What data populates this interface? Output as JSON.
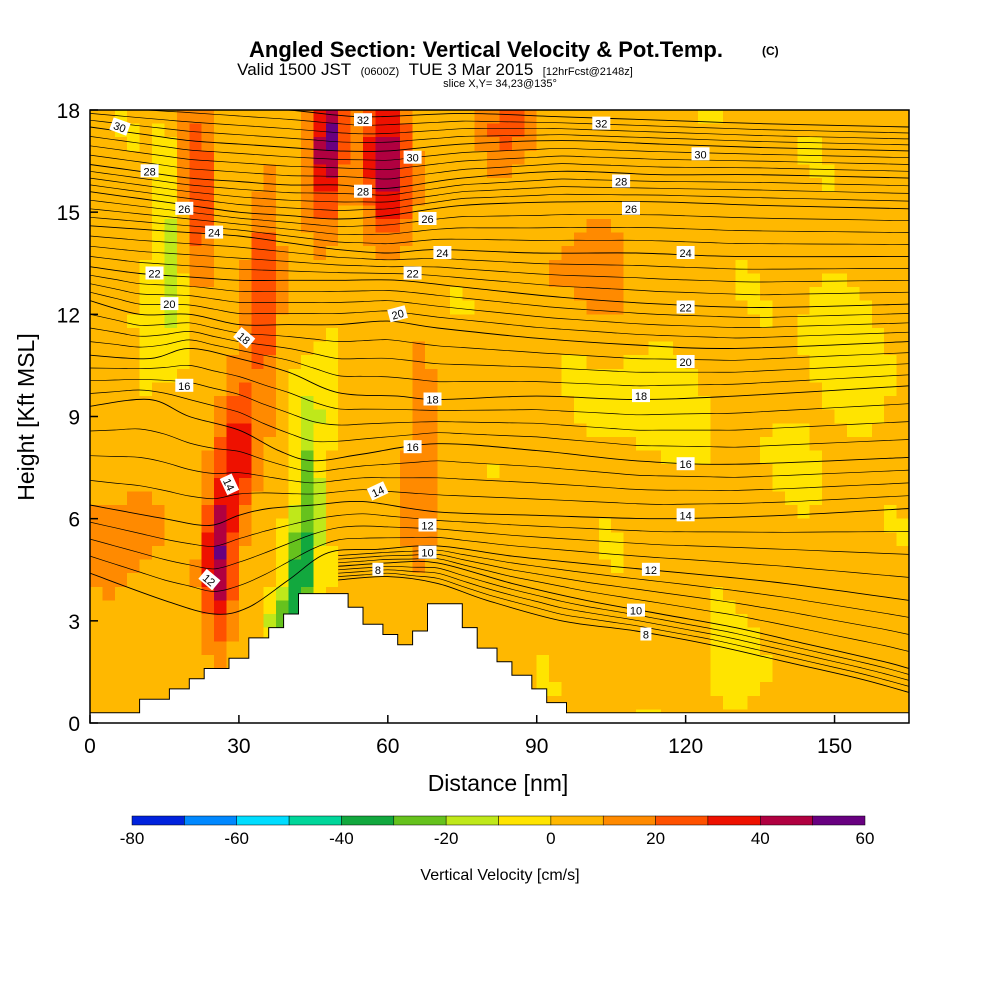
{
  "chart_data": {
    "type": "heatmap",
    "title": "Angled Section: Vertical Velocity & Pot.Temp.",
    "title_mark": "(C)",
    "subtitle_main": "Valid 1500 JST",
    "subtitle_z": "(0600Z)",
    "subtitle_date": "TUE 3 Mar 2015",
    "subtitle_fcst": "[12hrFcst@2148z]",
    "slice": "slice X,Y= 34,23@135°",
    "xlabel": "Distance [nm]",
    "ylabel": "Height [Kft MSL]",
    "xlim": [
      0,
      165
    ],
    "ylim": [
      0,
      18
    ],
    "x_ticks": [
      0,
      30,
      60,
      90,
      120,
      150
    ],
    "y_ticks": [
      0,
      3,
      6,
      9,
      12,
      15,
      18
    ],
    "colorbar": {
      "label": "Vertical Velocity [cm/s]",
      "ticks": [
        -80,
        -60,
        -40,
        -20,
        0,
        20,
        40,
        60
      ],
      "bounds": [
        -80,
        -70,
        -60,
        -50,
        -40,
        -30,
        -20,
        -10,
        0,
        10,
        20,
        30,
        40,
        50,
        60
      ],
      "colors": [
        "#0022dd",
        "#0088ff",
        "#00ddff",
        "#00d69a",
        "#12a83e",
        "#66c21d",
        "#bfe81a",
        "#ffe400",
        "#ffb800",
        "#ff8a00",
        "#ff5100",
        "#ee1100",
        "#b00040",
        "#680080"
      ]
    },
    "terrain": [
      [
        0,
        0.3
      ],
      [
        10,
        0.3
      ],
      [
        10,
        0.7
      ],
      [
        16,
        0.7
      ],
      [
        16,
        1.0
      ],
      [
        20,
        1.0
      ],
      [
        20,
        1.3
      ],
      [
        23,
        1.3
      ],
      [
        23,
        1.6
      ],
      [
        28,
        1.6
      ],
      [
        28,
        1.9
      ],
      [
        32,
        1.9
      ],
      [
        32,
        2.5
      ],
      [
        36,
        2.5
      ],
      [
        36,
        2.8
      ],
      [
        39,
        2.8
      ],
      [
        39,
        3.2
      ],
      [
        42,
        3.2
      ],
      [
        42,
        3.8
      ],
      [
        52,
        3.8
      ],
      [
        52,
        3.4
      ],
      [
        55,
        3.4
      ],
      [
        55,
        2.9
      ],
      [
        59,
        2.9
      ],
      [
        59,
        2.6
      ],
      [
        62,
        2.6
      ],
      [
        62,
        2.3
      ],
      [
        65,
        2.3
      ],
      [
        65,
        2.7
      ],
      [
        68,
        2.7
      ],
      [
        68,
        3.5
      ],
      [
        75,
        3.5
      ],
      [
        75,
        2.8
      ],
      [
        78,
        2.8
      ],
      [
        78,
        2.2
      ],
      [
        82,
        2.2
      ],
      [
        82,
        1.8
      ],
      [
        85,
        1.8
      ],
      [
        85,
        1.4
      ],
      [
        89,
        1.4
      ],
      [
        89,
        1.0
      ],
      [
        92,
        1.0
      ],
      [
        92,
        0.6
      ],
      [
        96,
        0.6
      ],
      [
        96,
        0.3
      ],
      [
        165,
        0.3
      ]
    ],
    "velocity_field": [
      {
        "x": 22,
        "y": 16,
        "sx": 4,
        "sy": 2.6,
        "amp": 25
      },
      {
        "x": 16,
        "y": 14,
        "sx": 3,
        "sy": 3.0,
        "amp": -18
      },
      {
        "x": 11,
        "y": 10.5,
        "sx": 3,
        "sy": 1.8,
        "amp": -10
      },
      {
        "x": 26,
        "y": 5,
        "sx": 3.2,
        "sy": 2.6,
        "amp": 48
      },
      {
        "x": 30,
        "y": 8,
        "sx": 3,
        "sy": 2.2,
        "amp": 30
      },
      {
        "x": 35,
        "y": 12.5,
        "sx": 3.2,
        "sy": 3.2,
        "amp": 30
      },
      {
        "x": 47,
        "y": 16.5,
        "sx": 3.6,
        "sy": 2.4,
        "amp": 35
      },
      {
        "x": 49,
        "y": 17.5,
        "sx": 2.5,
        "sy": 1.5,
        "amp": 25
      },
      {
        "x": 60,
        "y": 16.5,
        "sx": 5,
        "sy": 2.2,
        "amp": 45
      },
      {
        "x": 84,
        "y": 17.5,
        "sx": 5,
        "sy": 1.5,
        "amp": 25
      },
      {
        "x": 44,
        "y": 7,
        "sx": 2.6,
        "sy": 2.6,
        "amp": -28
      },
      {
        "x": 42,
        "y": 4,
        "sx": 2.6,
        "sy": 1.6,
        "amp": -40
      },
      {
        "x": 38,
        "y": 3,
        "sx": 2.4,
        "sy": 1.0,
        "amp": -28
      },
      {
        "x": 48,
        "y": 10,
        "sx": 2.2,
        "sy": 1.8,
        "amp": -14
      },
      {
        "x": 66,
        "y": 7,
        "sx": 4,
        "sy": 3.5,
        "amp": 14
      },
      {
        "x": 4,
        "y": 5,
        "sx": 6,
        "sy": 2.2,
        "amp": 12
      },
      {
        "x": 12,
        "y": 7,
        "sx": 5,
        "sy": 2.5,
        "amp": 6
      },
      {
        "x": 106,
        "y": 14.5,
        "sx": 10,
        "sy": 3,
        "amp": 9
      },
      {
        "x": 92,
        "y": 13,
        "sx": 8,
        "sy": 1.5,
        "amp": 6
      },
      {
        "x": 112,
        "y": 9.5,
        "sx": 12,
        "sy": 2,
        "amp": -8
      },
      {
        "x": 150,
        "y": 10,
        "sx": 10,
        "sy": 3,
        "amp": -7
      },
      {
        "x": 130,
        "y": 1.5,
        "sx": 8,
        "sy": 1,
        "amp": -9
      },
      {
        "x": 150,
        "y": 1.5,
        "sx": 8,
        "sy": 1.2,
        "amp": 6
      },
      {
        "x": 88,
        "y": 5,
        "sx": 6,
        "sy": 2,
        "amp": 4
      },
      {
        "x": 152,
        "y": 4,
        "sx": 8,
        "sy": 2,
        "amp": 3
      }
    ],
    "isentropes": [
      {
        "level": 8,
        "points": [
          [
            50,
            4.2
          ],
          [
            60,
            4.3
          ],
          [
            70,
            4.1
          ],
          [
            80,
            3.6
          ],
          [
            95,
            3.0
          ],
          [
            110,
            2.7
          ],
          [
            125,
            2.3
          ],
          [
            140,
            1.8
          ],
          [
            155,
            1.3
          ],
          [
            165,
            0.9
          ]
        ]
      },
      {
        "level": 10,
        "points": [
          [
            50,
            4.6
          ],
          [
            60,
            4.7
          ],
          [
            70,
            4.7
          ],
          [
            85,
            4.1
          ],
          [
            100,
            3.6
          ],
          [
            115,
            3.2
          ],
          [
            130,
            2.8
          ],
          [
            145,
            2.3
          ],
          [
            160,
            1.8
          ],
          [
            165,
            1.6
          ]
        ]
      },
      {
        "level": 12,
        "points": [
          [
            0,
            4.4
          ],
          [
            15,
            3.6
          ],
          [
            25,
            3.2
          ],
          [
            32,
            3.4
          ],
          [
            40,
            4.2
          ],
          [
            48,
            5.0
          ],
          [
            58,
            5.1
          ],
          [
            70,
            5.2
          ],
          [
            85,
            4.9
          ],
          [
            105,
            4.6
          ],
          [
            120,
            4.4
          ],
          [
            140,
            4.1
          ],
          [
            165,
            3.6
          ]
        ]
      },
      {
        "level": 14,
        "points": [
          [
            0,
            6.4
          ],
          [
            15,
            6.0
          ],
          [
            24,
            5.8
          ],
          [
            30,
            6.1
          ],
          [
            36,
            6.3
          ],
          [
            45,
            6.4
          ],
          [
            55,
            6.5
          ],
          [
            70,
            6.2
          ],
          [
            90,
            6.1
          ],
          [
            115,
            6.0
          ],
          [
            140,
            6.1
          ],
          [
            165,
            6.3
          ]
        ]
      },
      {
        "level": 16,
        "points": [
          [
            0,
            9.3
          ],
          [
            12,
            9.5
          ],
          [
            20,
            9.0
          ],
          [
            30,
            8.6
          ],
          [
            38,
            8.0
          ],
          [
            45,
            7.7
          ],
          [
            55,
            7.9
          ],
          [
            70,
            8.2
          ],
          [
            90,
            8.0
          ],
          [
            110,
            7.7
          ],
          [
            130,
            7.6
          ],
          [
            165,
            7.8
          ]
        ]
      },
      {
        "level": 18,
        "points": [
          [
            0,
            10.8
          ],
          [
            12,
            10.7
          ],
          [
            20,
            11.0
          ],
          [
            30,
            10.7
          ],
          [
            40,
            10.3
          ],
          [
            50,
            9.7
          ],
          [
            62,
            9.6
          ],
          [
            70,
            9.5
          ],
          [
            90,
            9.6
          ],
          [
            110,
            9.5
          ],
          [
            130,
            9.6
          ],
          [
            165,
            9.9
          ]
        ]
      },
      {
        "level": 20,
        "points": [
          [
            0,
            12.4
          ],
          [
            10,
            12.0
          ],
          [
            20,
            12.0
          ],
          [
            30,
            11.7
          ],
          [
            40,
            11.7
          ],
          [
            50,
            11.7
          ],
          [
            60,
            11.8
          ],
          [
            70,
            11.6
          ],
          [
            90,
            11.3
          ],
          [
            110,
            11.1
          ],
          [
            130,
            11.0
          ],
          [
            165,
            11.2
          ]
        ]
      },
      {
        "level": 22,
        "points": [
          [
            0,
            13.4
          ],
          [
            10,
            13.2
          ],
          [
            20,
            13.1
          ],
          [
            30,
            13.0
          ],
          [
            40,
            13.0
          ],
          [
            50,
            13.0
          ],
          [
            62,
            13.0
          ],
          [
            75,
            12.8
          ],
          [
            95,
            12.5
          ],
          [
            115,
            12.3
          ],
          [
            135,
            12.2
          ],
          [
            165,
            12.3
          ]
        ]
      },
      {
        "level": 24,
        "points": [
          [
            0,
            14.6
          ],
          [
            10,
            14.5
          ],
          [
            20,
            14.4
          ],
          [
            30,
            14.3
          ],
          [
            40,
            14.1
          ],
          [
            50,
            13.9
          ],
          [
            60,
            13.8
          ],
          [
            70,
            13.9
          ],
          [
            90,
            13.8
          ],
          [
            110,
            13.8
          ],
          [
            130,
            13.7
          ],
          [
            165,
            13.7
          ]
        ]
      },
      {
        "level": 26,
        "points": [
          [
            0,
            15.6
          ],
          [
            10,
            15.4
          ],
          [
            20,
            15.2
          ],
          [
            30,
            15.0
          ],
          [
            40,
            14.9
          ],
          [
            50,
            14.8
          ],
          [
            60,
            14.9
          ],
          [
            75,
            15.2
          ],
          [
            95,
            15.3
          ],
          [
            115,
            15.3
          ],
          [
            135,
            15.2
          ],
          [
            165,
            15.1
          ]
        ]
      },
      {
        "level": 28,
        "points": [
          [
            0,
            16.4
          ],
          [
            10,
            16.2
          ],
          [
            20,
            16.0
          ],
          [
            30,
            15.9
          ],
          [
            40,
            15.8
          ],
          [
            50,
            15.8
          ],
          [
            60,
            15.7
          ],
          [
            75,
            16.0
          ],
          [
            95,
            16.2
          ],
          [
            115,
            16.1
          ],
          [
            135,
            16.1
          ],
          [
            165,
            16.0
          ]
        ]
      },
      {
        "level": 30,
        "points": [
          [
            0,
            17.5
          ],
          [
            10,
            17.3
          ],
          [
            20,
            17.1
          ],
          [
            30,
            17.0
          ],
          [
            40,
            16.9
          ],
          [
            50,
            16.8
          ],
          [
            60,
            16.8
          ],
          [
            75,
            17.0
          ],
          [
            95,
            17.1
          ],
          [
            115,
            17.0
          ],
          [
            135,
            16.9
          ],
          [
            165,
            16.8
          ]
        ]
      },
      {
        "level": 32,
        "points": [
          [
            0,
            18.3
          ],
          [
            20,
            18.2
          ],
          [
            40,
            18.0
          ],
          [
            55,
            17.8
          ],
          [
            75,
            17.9
          ],
          [
            95,
            17.8
          ],
          [
            115,
            17.7
          ],
          [
            135,
            17.6
          ],
          [
            165,
            17.5
          ]
        ]
      }
    ],
    "contour_labels": [
      {
        "x": 6,
        "y": 17.5,
        "text": "30",
        "rot": 20
      },
      {
        "x": 12,
        "y": 16.2,
        "text": "28",
        "rot": 0
      },
      {
        "x": 19,
        "y": 15.1,
        "text": "26",
        "rot": 0
      },
      {
        "x": 25,
        "y": 14.4,
        "text": "24",
        "rot": 0
      },
      {
        "x": 13,
        "y": 13.2,
        "text": "22",
        "rot": 0
      },
      {
        "x": 16,
        "y": 12.3,
        "text": "20",
        "rot": 0
      },
      {
        "x": 31,
        "y": 11.3,
        "text": "18",
        "rot": 40
      },
      {
        "x": 19,
        "y": 9.9,
        "text": "16",
        "rot": 0
      },
      {
        "x": 28,
        "y": 7.0,
        "text": "14",
        "rot": 65
      },
      {
        "x": 24,
        "y": 4.2,
        "text": "12",
        "rot": 40
      },
      {
        "x": 55,
        "y": 17.7,
        "text": "32",
        "rot": 0
      },
      {
        "x": 65,
        "y": 16.6,
        "text": "30",
        "rot": 0
      },
      {
        "x": 55,
        "y": 15.6,
        "text": "28",
        "rot": 0
      },
      {
        "x": 68,
        "y": 14.8,
        "text": "26",
        "rot": 0
      },
      {
        "x": 71,
        "y": 13.8,
        "text": "24",
        "rot": 0
      },
      {
        "x": 65,
        "y": 13.2,
        "text": "22",
        "rot": 0
      },
      {
        "x": 62,
        "y": 12.0,
        "text": "20",
        "rot": -15
      },
      {
        "x": 69,
        "y": 9.5,
        "text": "18",
        "rot": 0
      },
      {
        "x": 65,
        "y": 8.1,
        "text": "16",
        "rot": 0
      },
      {
        "x": 58,
        "y": 6.8,
        "text": "14",
        "rot": -25
      },
      {
        "x": 68,
        "y": 5.8,
        "text": "12",
        "rot": 0
      },
      {
        "x": 68,
        "y": 5.0,
        "text": "10",
        "rot": 0
      },
      {
        "x": 58,
        "y": 4.5,
        "text": "8",
        "rot": 0
      },
      {
        "x": 103,
        "y": 17.6,
        "text": "32",
        "rot": 0
      },
      {
        "x": 123,
        "y": 16.7,
        "text": "30",
        "rot": 0
      },
      {
        "x": 107,
        "y": 15.9,
        "text": "28",
        "rot": 0
      },
      {
        "x": 109,
        "y": 15.1,
        "text": "26",
        "rot": 0
      },
      {
        "x": 120,
        "y": 13.8,
        "text": "24",
        "rot": 0
      },
      {
        "x": 120,
        "y": 12.2,
        "text": "22",
        "rot": 0
      },
      {
        "x": 120,
        "y": 10.6,
        "text": "20",
        "rot": 0
      },
      {
        "x": 111,
        "y": 9.6,
        "text": "18",
        "rot": 0
      },
      {
        "x": 120,
        "y": 7.6,
        "text": "16",
        "rot": 0
      },
      {
        "x": 120,
        "y": 6.1,
        "text": "14",
        "rot": 0
      },
      {
        "x": 113,
        "y": 4.5,
        "text": "12",
        "rot": 0
      },
      {
        "x": 110,
        "y": 3.3,
        "text": "10",
        "rot": 0
      },
      {
        "x": 112,
        "y": 2.6,
        "text": "8",
        "rot": 0
      }
    ]
  }
}
